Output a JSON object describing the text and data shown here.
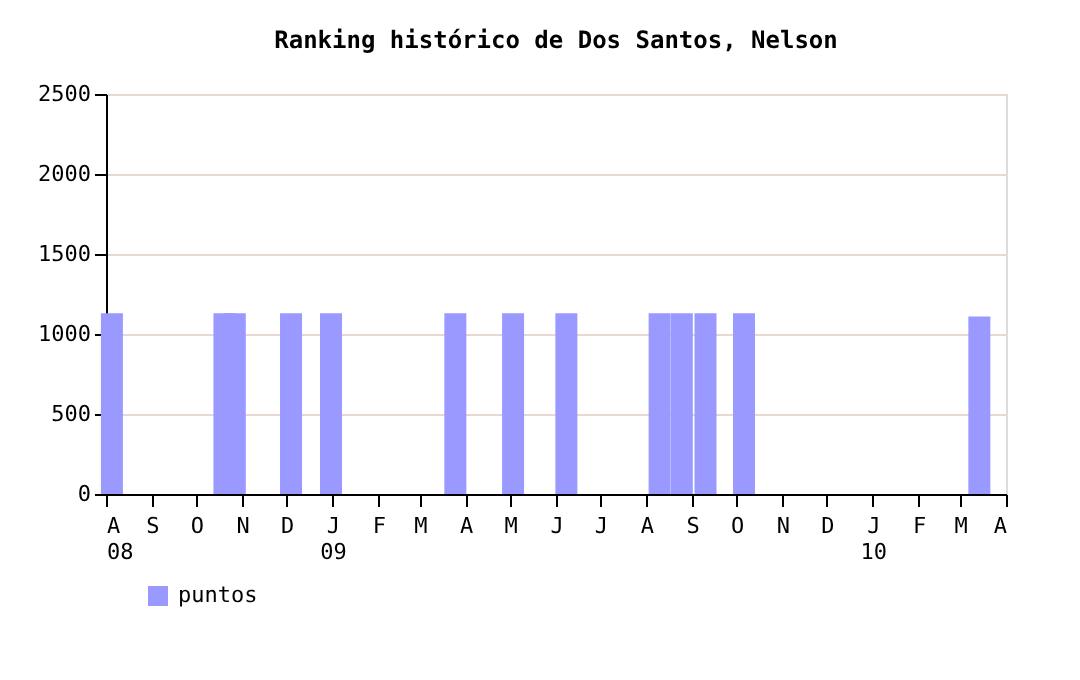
{
  "chart_data": {
    "type": "bar",
    "title": "Ranking histórico de Dos Santos, Nelson",
    "x": [
      "2008-08-05",
      "2008-10-20",
      "2008-10-27",
      "2008-12-04",
      "2008-12-31",
      "2009-03-25",
      "2009-05-03",
      "2009-06-08",
      "2009-08-10",
      "2009-08-25",
      "2009-09-10",
      "2009-10-06",
      "2010-03-14"
    ],
    "series": [
      {
        "name": "puntos",
        "color": "#9999ff",
        "values": [
          1130,
          1130,
          1130,
          1130,
          1130,
          1130,
          1130,
          1130,
          1130,
          1130,
          1130,
          1130,
          1110
        ]
      }
    ],
    "xlim": [
      "2008-08-01",
      "2010-04-01"
    ],
    "xticks": [
      {
        "value": "2008-08-01",
        "label": "A\n08"
      },
      {
        "value": "2008-09-01",
        "label": "S"
      },
      {
        "value": "2008-10-01",
        "label": "O"
      },
      {
        "value": "2008-11-01",
        "label": "N"
      },
      {
        "value": "2008-12-01",
        "label": "D"
      },
      {
        "value": "2009-01-01",
        "label": "J\n09"
      },
      {
        "value": "2009-02-01",
        "label": "F"
      },
      {
        "value": "2009-03-01",
        "label": "M"
      },
      {
        "value": "2009-04-01",
        "label": "A"
      },
      {
        "value": "2009-05-01",
        "label": "M"
      },
      {
        "value": "2009-06-01",
        "label": "J"
      },
      {
        "value": "2009-07-01",
        "label": "J"
      },
      {
        "value": "2009-08-01",
        "label": "A"
      },
      {
        "value": "2009-09-01",
        "label": "S"
      },
      {
        "value": "2009-10-01",
        "label": "O"
      },
      {
        "value": "2009-11-01",
        "label": "N"
      },
      {
        "value": "2009-12-01",
        "label": "D"
      },
      {
        "value": "2010-01-01",
        "label": "J\n10"
      },
      {
        "value": "2010-02-01",
        "label": "F"
      },
      {
        "value": "2010-03-01",
        "label": "M"
      },
      {
        "value": "2010-04-01",
        "label": "A"
      }
    ],
    "ylim": [
      0,
      2500
    ],
    "yticks": [
      0,
      500,
      1000,
      1500,
      2000,
      2500
    ],
    "grid": "y",
    "legend": "bottom left"
  }
}
